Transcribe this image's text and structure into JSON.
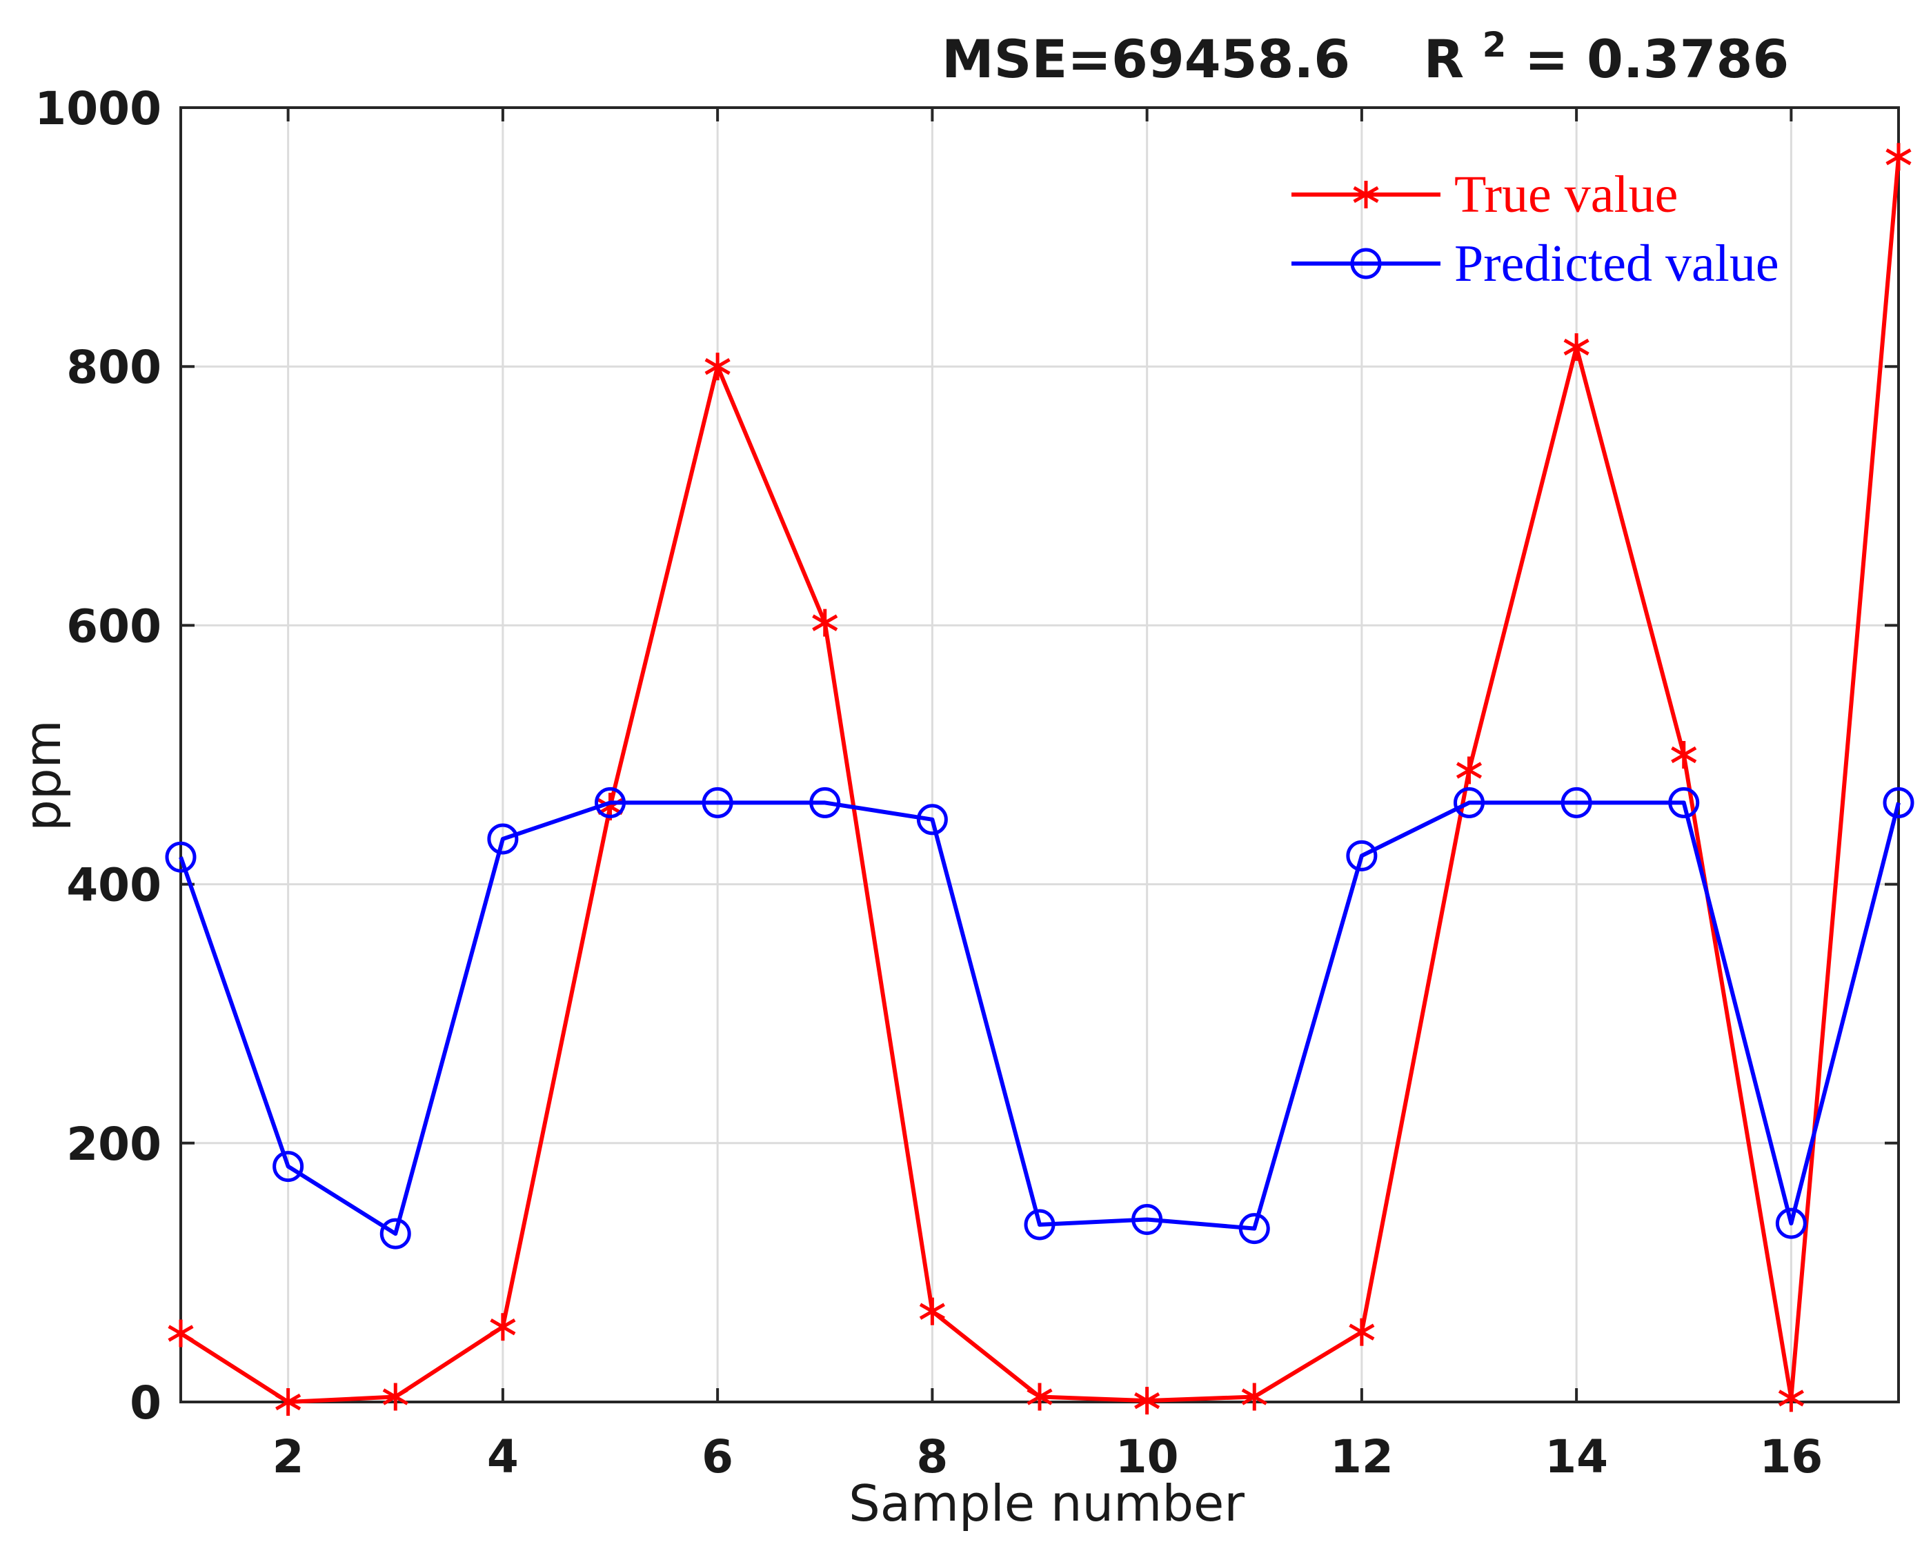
{
  "chart_data": {
    "type": "line",
    "title_main": "MSE=69458.6",
    "title_r": "R",
    "title_sup": "2",
    "title_rest": " = 0.3786",
    "xlabel": "Sample number",
    "ylabel": "ppm",
    "xlim": [
      1,
      17
    ],
    "ylim": [
      0,
      1000
    ],
    "xticks": [
      2,
      4,
      6,
      8,
      10,
      12,
      14,
      16
    ],
    "yticks": [
      0,
      200,
      400,
      600,
      800,
      1000
    ],
    "grid": true,
    "legend_position": "top-right",
    "x": [
      1,
      2,
      3,
      4,
      5,
      6,
      7,
      8,
      9,
      10,
      11,
      12,
      13,
      14,
      15,
      16,
      17
    ],
    "series": [
      {
        "name": "True value",
        "color": "#ff0000",
        "marker": "asterisk",
        "values": [
          53,
          0,
          4,
          58,
          460,
          800,
          602,
          70,
          4,
          1,
          4,
          54,
          488,
          815,
          500,
          3,
          962
        ]
      },
      {
        "name": "Predicted value",
        "color": "#0000ff",
        "marker": "circle",
        "values": [
          421,
          182,
          130,
          435,
          463,
          463,
          463,
          450,
          137,
          141,
          134,
          422,
          463,
          463,
          463,
          138,
          463
        ]
      }
    ]
  }
}
